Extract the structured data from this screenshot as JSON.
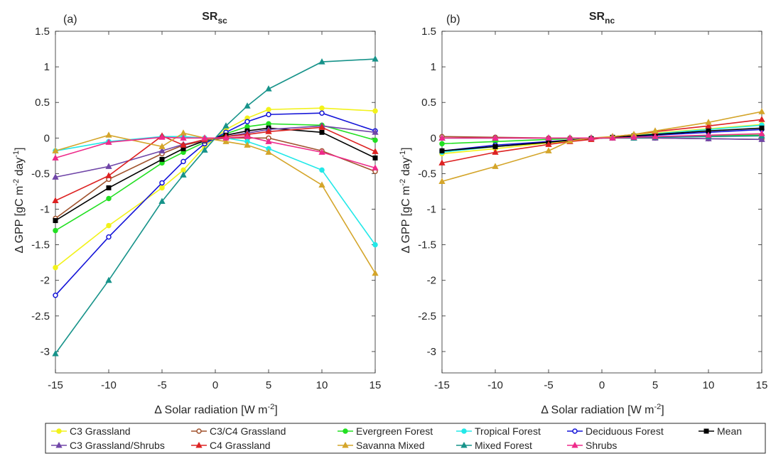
{
  "figure": {
    "panels": [
      {
        "id": "a",
        "tag": "(a)",
        "title_main": "SR",
        "title_sub": "sc"
      },
      {
        "id": "b",
        "tag": "(b)",
        "title_main": "SR",
        "title_sub": "nc"
      }
    ],
    "xlabel": {
      "pre": "Δ Solar radiation [W m",
      "sup": "-2",
      "post": "]"
    },
    "ylabel": {
      "pre": "Δ GPP [gC m",
      "sup1": "-2",
      "mid": " day",
      "sup2": "-1",
      "post": "]"
    }
  },
  "chart_data": [
    {
      "type": "line",
      "panel": "a",
      "x": [
        -15,
        -10,
        -5,
        -3,
        -1,
        1,
        3,
        5,
        10,
        15
      ],
      "xlim": [
        -15,
        15
      ],
      "ylim": [
        -3.3,
        1.5
      ],
      "xticks": [
        -15,
        -10,
        -5,
        0,
        5,
        10,
        15
      ],
      "yticks": [
        -3,
        -2.5,
        -2,
        -1.5,
        -1,
        -0.5,
        0,
        0.5,
        1,
        1.5
      ],
      "grid": false,
      "series": [
        {
          "name": "C3 Grassland",
          "color": "#f2f21a",
          "marker": "circle-filled",
          "values": [
            -1.82,
            -1.23,
            -0.7,
            -0.45,
            -0.12,
            0.12,
            0.28,
            0.4,
            0.42,
            0.38
          ]
        },
        {
          "name": "C3/C4 Grassland",
          "color": "#a0522d",
          "marker": "circle-open",
          "values": [
            -1.13,
            -0.58,
            -0.22,
            -0.1,
            -0.04,
            0.0,
            0.0,
            0.0,
            -0.18,
            -0.47
          ]
        },
        {
          "name": "Evergreen Forest",
          "color": "#22e022",
          "marker": "circle-filled",
          "values": [
            -1.3,
            -0.85,
            -0.35,
            -0.2,
            -0.06,
            0.06,
            0.16,
            0.2,
            0.18,
            -0.03
          ]
        },
        {
          "name": "Tropical Forest",
          "color": "#22e8e8",
          "marker": "circle-filled",
          "values": [
            -0.18,
            -0.05,
            0.02,
            0.02,
            0.0,
            0.0,
            -0.05,
            -0.15,
            -0.45,
            -1.5
          ]
        },
        {
          "name": "Deciduous Forest",
          "color": "#1414d8",
          "marker": "circle-open",
          "values": [
            -2.21,
            -1.39,
            -0.63,
            -0.33,
            -0.08,
            0.08,
            0.23,
            0.33,
            0.35,
            0.1
          ]
        },
        {
          "name": "Mean",
          "color": "#000000",
          "marker": "square-filled",
          "values": [
            -1.16,
            -0.7,
            -0.3,
            -0.15,
            -0.04,
            0.04,
            0.1,
            0.14,
            0.08,
            -0.28
          ]
        },
        {
          "name": "C3 Grassland/Shrubs",
          "color": "#7046a8",
          "marker": "triangle-filled",
          "values": [
            -0.55,
            -0.4,
            -0.18,
            -0.09,
            -0.03,
            0.02,
            0.07,
            0.12,
            0.17,
            0.08
          ]
        },
        {
          "name": "C4 Grassland",
          "color": "#dd2222",
          "marker": "triangle-filled",
          "values": [
            -0.88,
            -0.53,
            0.03,
            -0.1,
            -0.02,
            0.02,
            0.05,
            0.09,
            0.15,
            -0.19
          ]
        },
        {
          "name": "Savanna Mixed",
          "color": "#d4a52a",
          "marker": "triangle-filled",
          "values": [
            -0.18,
            0.04,
            -0.12,
            0.07,
            0.0,
            -0.05,
            -0.1,
            -0.2,
            -0.66,
            -1.9
          ]
        },
        {
          "name": "Mixed Forest",
          "color": "#17938a",
          "marker": "triangle-filled",
          "values": [
            -3.03,
            -2.0,
            -0.89,
            -0.52,
            -0.17,
            0.17,
            0.45,
            0.69,
            1.07,
            1.11
          ]
        },
        {
          "name": "Shrubs",
          "color": "#ee2a8a",
          "marker": "triangle-filled",
          "values": [
            -0.28,
            -0.06,
            0.01,
            0.0,
            0.0,
            0.0,
            0.02,
            -0.05,
            -0.2,
            -0.42
          ]
        }
      ]
    },
    {
      "type": "line",
      "panel": "b",
      "x": [
        -15,
        -10,
        -5,
        -3,
        -1,
        1,
        3,
        5,
        10,
        15
      ],
      "xlim": [
        -15,
        15
      ],
      "ylim": [
        -3.3,
        1.5
      ],
      "xticks": [
        -15,
        -10,
        -5,
        0,
        5,
        10,
        15
      ],
      "yticks": [
        -3,
        -2.5,
        -2,
        -1.5,
        -1,
        -0.5,
        0,
        0.5,
        1,
        1.5
      ],
      "grid": false,
      "series": [
        {
          "name": "C3 Grassland",
          "color": "#f2f21a",
          "marker": "circle-filled",
          "values": [
            -0.22,
            -0.15,
            -0.07,
            -0.04,
            -0.01,
            0.01,
            0.04,
            0.07,
            0.13,
            0.19
          ]
        },
        {
          "name": "C3/C4 Grassland",
          "color": "#a0522d",
          "marker": "circle-open",
          "values": [
            0.02,
            0.01,
            0.0,
            0.0,
            0.0,
            0.0,
            0.0,
            0.0,
            -0.01,
            -0.02
          ]
        },
        {
          "name": "Evergreen Forest",
          "color": "#22e022",
          "marker": "circle-filled",
          "values": [
            -0.08,
            -0.05,
            -0.02,
            -0.01,
            0.0,
            0.0,
            0.01,
            0.02,
            0.03,
            0.04
          ]
        },
        {
          "name": "Tropical Forest",
          "color": "#22e8e8",
          "marker": "circle-filled",
          "values": [
            -0.2,
            -0.12,
            -0.06,
            -0.03,
            -0.01,
            0.01,
            0.03,
            0.06,
            0.12,
            0.18
          ]
        },
        {
          "name": "Deciduous Forest",
          "color": "#1414d8",
          "marker": "circle-open",
          "values": [
            -0.18,
            -0.1,
            -0.05,
            -0.03,
            -0.01,
            0.01,
            0.02,
            0.04,
            0.08,
            0.12
          ]
        },
        {
          "name": "Mean",
          "color": "#000000",
          "marker": "square-filled",
          "values": [
            -0.18,
            -0.12,
            -0.06,
            -0.03,
            -0.01,
            0.01,
            0.03,
            0.05,
            0.1,
            0.14
          ]
        },
        {
          "name": "C3 Grassland/Shrubs",
          "color": "#7046a8",
          "marker": "triangle-filled",
          "values": [
            0.0,
            0.0,
            0.0,
            0.0,
            0.0,
            0.0,
            0.0,
            0.0,
            -0.01,
            -0.02
          ]
        },
        {
          "name": "C4 Grassland",
          "color": "#dd2222",
          "marker": "triangle-filled",
          "values": [
            -0.35,
            -0.2,
            -0.09,
            -0.05,
            -0.02,
            0.02,
            0.05,
            0.09,
            0.17,
            0.26
          ]
        },
        {
          "name": "Savanna Mixed",
          "color": "#d4a52a",
          "marker": "triangle-filled",
          "values": [
            -0.61,
            -0.4,
            -0.18,
            -0.04,
            0.0,
            0.02,
            0.05,
            0.1,
            0.22,
            0.37
          ]
        },
        {
          "name": "Mixed Forest",
          "color": "#17938a",
          "marker": "triangle-filled",
          "values": [
            0.0,
            0.0,
            0.0,
            0.0,
            0.0,
            0.0,
            0.0,
            0.01,
            0.02,
            0.03
          ]
        },
        {
          "name": "Shrubs",
          "color": "#ee2a8a",
          "marker": "triangle-filled",
          "values": [
            0.0,
            0.0,
            0.0,
            0.0,
            0.0,
            0.0,
            0.01,
            0.02,
            0.04,
            0.06
          ]
        }
      ]
    }
  ],
  "legend": {
    "placement": "bottom",
    "rows": [
      [
        "C3 Grassland",
        "C3/C4 Grassland",
        "Evergreen Forest",
        "Tropical Forest",
        "Deciduous Forest",
        "Mean"
      ],
      [
        "C3 Grassland/Shrubs",
        "C4 Grassland",
        "Savanna Mixed",
        "Mixed Forest",
        "Shrubs"
      ]
    ]
  }
}
